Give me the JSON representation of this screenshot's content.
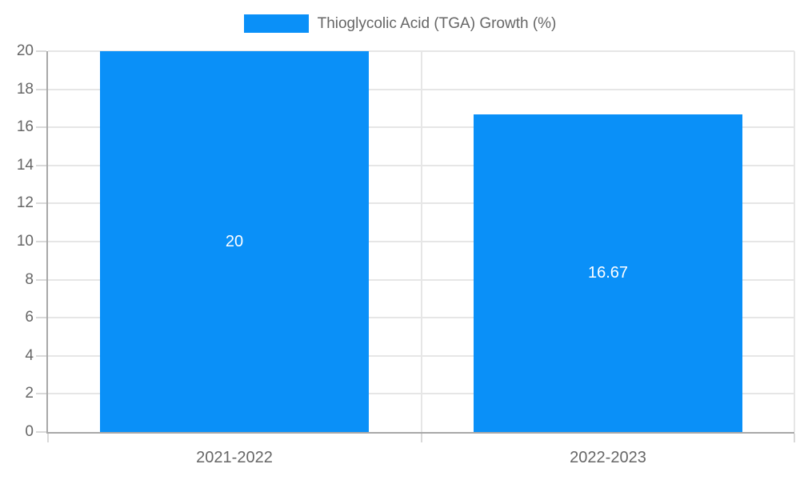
{
  "chart_data": {
    "type": "bar",
    "title": "",
    "xlabel": "",
    "ylabel": "",
    "categories": [
      "2021-2022",
      "2022-2023"
    ],
    "series": [
      {
        "name": "Thioglycolic Acid (TGA) Growth (%)",
        "values": [
          20,
          16.67
        ],
        "data_labels": [
          "20",
          "16.67"
        ],
        "color": "#0a90f8"
      }
    ],
    "ylim": [
      0,
      20
    ],
    "y_ticks": [
      0,
      2,
      4,
      6,
      8,
      10,
      12,
      14,
      16,
      18,
      20
    ],
    "grid": true,
    "legend_position": "top-center"
  },
  "legend": {
    "label": "Thioglycolic Acid (TGA) Growth (%)"
  },
  "colors": {
    "bar": "#0a90f8",
    "axis_line": "#a8a8a8",
    "grid_line": "#e6e6e6",
    "tick_mark": "#d9d9d9",
    "tick_label": "#666666",
    "legend_text": "#666666",
    "data_label": "#ffffff",
    "background": "#ffffff"
  }
}
